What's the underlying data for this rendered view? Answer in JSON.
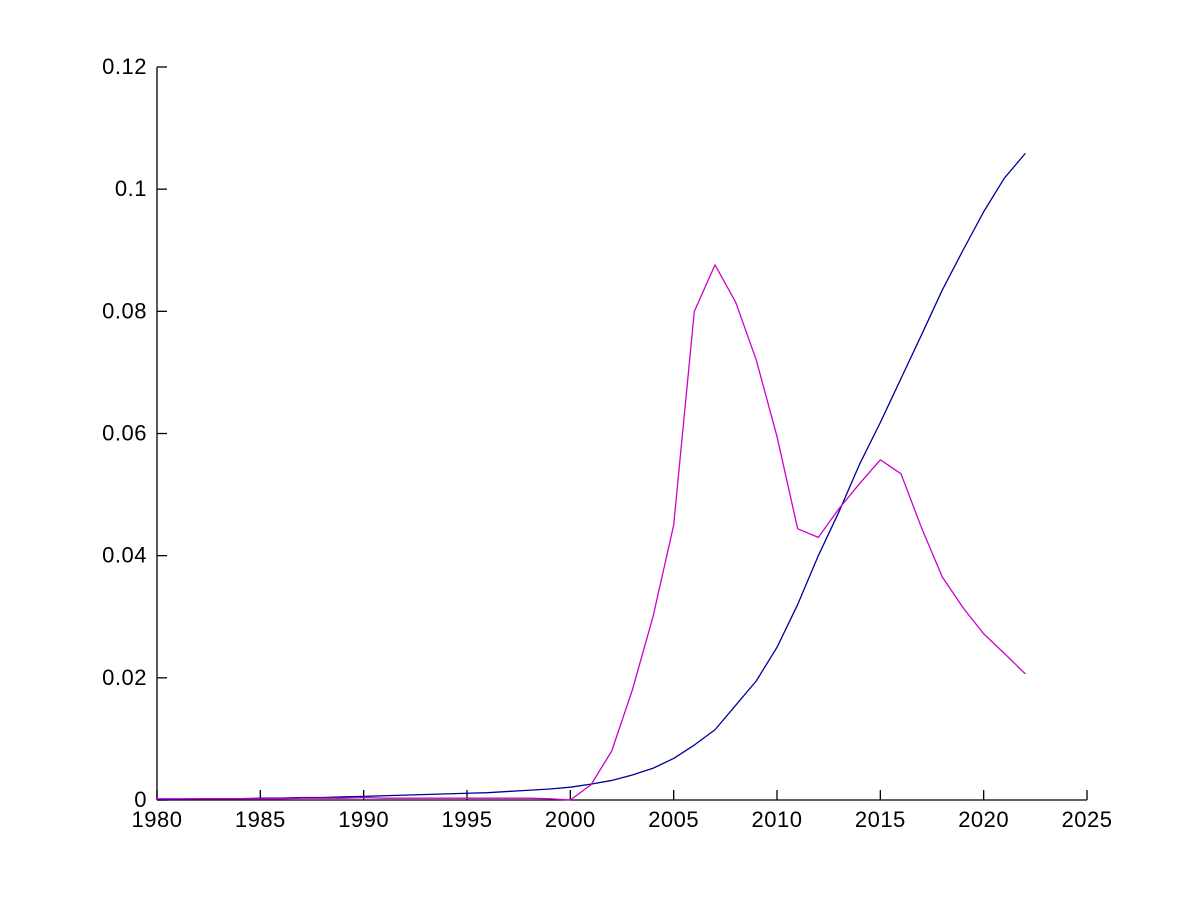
{
  "figure": {
    "background": "#ffffff",
    "title": ""
  },
  "chart_data": {
    "type": "line",
    "title": "",
    "xlabel": "",
    "ylabel": "",
    "grid": false,
    "legend": null,
    "xlim": [
      1980,
      2025
    ],
    "ylim": [
      0,
      0.12
    ],
    "xticks": [
      1980,
      1985,
      1990,
      1995,
      2000,
      2005,
      2010,
      2015,
      2020,
      2025
    ],
    "xtick_labels": [
      "1980",
      "1985",
      "1990",
      "1995",
      "2000",
      "2005",
      "2010",
      "2015",
      "2020",
      "2025"
    ],
    "yticks": [
      0,
      0.02,
      0.04,
      0.06,
      0.08,
      0.1,
      0.12
    ],
    "ytick_labels": [
      "0",
      "0.02",
      "0.04",
      "0.06",
      "0.08",
      "0.1",
      "0.12"
    ],
    "axis_color": "#000000",
    "x": [
      1980,
      1981,
      1982,
      1983,
      1984,
      1985,
      1986,
      1987,
      1988,
      1989,
      1990,
      1991,
      1992,
      1993,
      1994,
      1995,
      1996,
      1997,
      1998,
      1999,
      2000,
      2001,
      2002,
      2003,
      2004,
      2005,
      2006,
      2007,
      2008,
      2009,
      2010,
      2011,
      2012,
      2013,
      2014,
      2015,
      2016,
      2017,
      2018,
      2019,
      2020,
      2021,
      2022
    ],
    "series": [
      {
        "name": "blue-line",
        "color": "#000099",
        "values": [
          0.0001,
          0.0001,
          0.0002,
          0.0002,
          0.0002,
          0.0003,
          0.0003,
          0.0004,
          0.0004,
          0.0005,
          0.0006,
          0.0007,
          0.0008,
          0.0009,
          0.001,
          0.0011,
          0.0012,
          0.0014,
          0.0016,
          0.0018,
          0.0021,
          0.0026,
          0.0032,
          0.0041,
          0.0052,
          0.0068,
          0.009,
          0.0115,
          0.0155,
          0.0195,
          0.025,
          0.032,
          0.04,
          0.0472,
          0.055,
          0.0618,
          0.069,
          0.0762,
          0.0835,
          0.09,
          0.0963,
          0.1018,
          0.1058
        ]
      },
      {
        "name": "magenta-line",
        "color": "#CC00CC",
        "values": [
          0.0002,
          0.0002,
          0.0002,
          0.0002,
          0.0002,
          0.0002,
          0.0002,
          0.0003,
          0.0003,
          0.0003,
          0.0004,
          0.0003,
          0.0003,
          0.0003,
          0.0003,
          0.0003,
          0.0003,
          0.0003,
          0.0003,
          0.0002,
          0.0,
          0.0025,
          0.008,
          0.018,
          0.03,
          0.045,
          0.08,
          0.0876,
          0.0815,
          0.072,
          0.0595,
          0.0444,
          0.043,
          0.0477,
          0.0518,
          0.0557,
          0.0534,
          0.0445,
          0.0365,
          0.0315,
          0.0272,
          0.024,
          0.0207
        ]
      }
    ]
  }
}
